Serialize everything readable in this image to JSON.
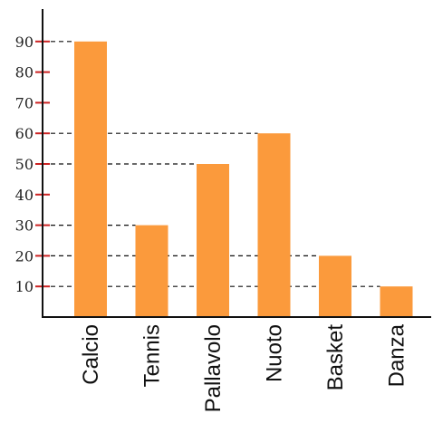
{
  "chart_data": {
    "type": "bar",
    "categories": [
      "Calcio",
      "Tennis",
      "Pallavolo",
      "Nuoto",
      "Basket",
      "Danza"
    ],
    "values": [
      90,
      30,
      50,
      60,
      20,
      10
    ],
    "yticks": [
      "10",
      "20",
      "30",
      "40",
      "50",
      "60",
      "70",
      "80",
      "90"
    ],
    "ylim": [
      0,
      100
    ],
    "grid": "dashed guide lines from y-axis to bar tops",
    "bar_color": "#fb9a3c",
    "tick_color": "#cc2222",
    "axis_color": "#111111"
  }
}
